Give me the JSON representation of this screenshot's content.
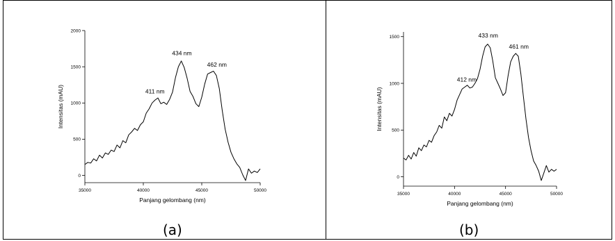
{
  "figure": {
    "panels": [
      {
        "label": "(a)"
      },
      {
        "label": "(b)"
      }
    ]
  },
  "chart_data": [
    {
      "type": "line",
      "panel": "(a)",
      "xlabel": "Panjang gelombang (nm)",
      "ylabel": "Intensitas (mAU)",
      "xlim": [
        35000,
        50000
      ],
      "ylim": [
        -100,
        2000
      ],
      "xticks": [
        35000,
        40000,
        45000,
        50000
      ],
      "yticks": [
        0,
        500,
        1000,
        1500,
        2000
      ],
      "annotations": [
        {
          "text": "411 nm",
          "x": 41000,
          "y": 1130
        },
        {
          "text": "434 nm",
          "x": 43300,
          "y": 1660
        },
        {
          "text": "462 nm",
          "x": 46300,
          "y": 1500
        }
      ],
      "series": [
        {
          "x": [
            35000,
            35250,
            35500,
            35750,
            36000,
            36250,
            36500,
            36750,
            37000,
            37250,
            37500,
            37750,
            38000,
            38250,
            38500,
            38750,
            39000,
            39250,
            39500,
            39750,
            40000,
            40250,
            40500,
            40750,
            41000,
            41250,
            41500,
            41750,
            42000,
            42250,
            42500,
            42750,
            43000,
            43250,
            43500,
            43750,
            44000,
            44250,
            44500,
            44750,
            45000,
            45250,
            45500,
            45750,
            46000,
            46250,
            46500,
            46750,
            47000,
            47250,
            47500,
            47750,
            48000,
            48250,
            48500,
            48750,
            49000,
            49250,
            49500,
            49750,
            50000
          ],
          "values": [
            150,
            180,
            170,
            230,
            200,
            280,
            240,
            310,
            290,
            350,
            330,
            420,
            380,
            480,
            450,
            560,
            600,
            650,
            620,
            700,
            740,
            860,
            920,
            1000,
            1040,
            1070,
            990,
            1010,
            980,
            1050,
            1150,
            1350,
            1500,
            1580,
            1490,
            1340,
            1160,
            1090,
            990,
            950,
            1080,
            1260,
            1400,
            1420,
            1440,
            1380,
            1200,
            900,
            640,
            460,
            320,
            230,
            160,
            110,
            10,
            -70,
            90,
            30,
            60,
            40,
            90
          ]
        }
      ]
    },
    {
      "type": "line",
      "panel": "(b)",
      "xlabel": "Panjang gelombang (nm)",
      "ylabel": "Intensitas (mAU)",
      "xlim": [
        35000,
        50000
      ],
      "ylim": [
        -100,
        1550
      ],
      "xticks": [
        35000,
        40000,
        45000,
        50000
      ],
      "yticks": [
        0,
        500,
        1000,
        1500
      ],
      "annotations": [
        {
          "text": "412 nm",
          "x": 41200,
          "y": 1020
        },
        {
          "text": "433 nm",
          "x": 43300,
          "y": 1490
        },
        {
          "text": "461 nm",
          "x": 46300,
          "y": 1370
        }
      ],
      "series": [
        {
          "x": [
            35000,
            35250,
            35500,
            35750,
            36000,
            36250,
            36500,
            36750,
            37000,
            37250,
            37500,
            37750,
            38000,
            38250,
            38500,
            38750,
            39000,
            39250,
            39500,
            39750,
            40000,
            40250,
            40500,
            40750,
            41000,
            41250,
            41500,
            41750,
            42000,
            42250,
            42500,
            42750,
            43000,
            43250,
            43500,
            43750,
            44000,
            44250,
            44500,
            44750,
            45000,
            45250,
            45500,
            45750,
            46000,
            46250,
            46500,
            46750,
            47000,
            47250,
            47500,
            47750,
            48000,
            48250,
            48500,
            48750,
            49000,
            49250,
            49500,
            49750,
            50000
          ],
          "values": [
            200,
            180,
            230,
            190,
            260,
            220,
            310,
            280,
            340,
            320,
            390,
            370,
            440,
            480,
            550,
            520,
            640,
            600,
            680,
            650,
            720,
            820,
            880,
            940,
            960,
            980,
            950,
            960,
            1000,
            1050,
            1150,
            1290,
            1390,
            1420,
            1380,
            1240,
            1060,
            1000,
            940,
            870,
            900,
            1080,
            1230,
            1290,
            1320,
            1290,
            1100,
            860,
            620,
            420,
            280,
            170,
            120,
            60,
            -40,
            40,
            120,
            50,
            80,
            60,
            80
          ]
        }
      ]
    }
  ]
}
